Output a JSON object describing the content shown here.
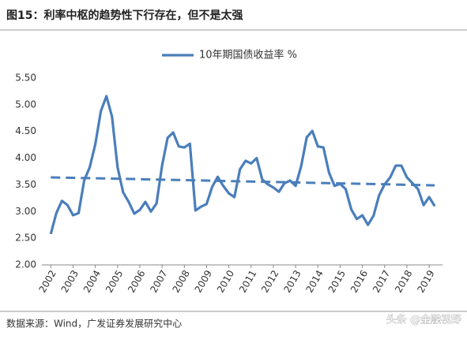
{
  "title": "图15：利率中枢的趋势性下行存在，但不是太强",
  "source": "数据来源：Wind，广发证券发展研究中心",
  "watermark": "头条 @金融视野",
  "chart_data": {
    "type": "line",
    "series": [
      {
        "name": "10年期国债收益率 %",
        "color": "#4a7ebb",
        "x": [
          2002,
          2002.25,
          2002.5,
          2002.75,
          2003,
          2003.25,
          2003.5,
          2003.75,
          2004,
          2004.25,
          2004.5,
          2004.75,
          2005,
          2005.25,
          2005.5,
          2005.75,
          2006,
          2006.25,
          2006.5,
          2006.75,
          2007,
          2007.25,
          2007.5,
          2007.75,
          2008,
          2008.25,
          2008.5,
          2008.75,
          2009,
          2009.25,
          2009.5,
          2009.75,
          2010,
          2010.25,
          2010.5,
          2010.75,
          2011,
          2011.25,
          2011.5,
          2011.75,
          2012,
          2012.25,
          2012.5,
          2012.75,
          2013,
          2013.25,
          2013.5,
          2013.75,
          2014,
          2014.25,
          2014.5,
          2014.75,
          2015,
          2015.25,
          2015.5,
          2015.75,
          2016,
          2016.25,
          2016.5,
          2016.75,
          2017,
          2017.25,
          2017.5,
          2017.75,
          2018,
          2018.25,
          2018.5,
          2018.75,
          2019,
          2019.25
        ],
        "values": [
          2.58,
          2.97,
          3.2,
          3.12,
          2.93,
          2.97,
          3.58,
          3.83,
          4.26,
          4.88,
          5.16,
          4.78,
          3.83,
          3.36,
          3.18,
          2.96,
          3.03,
          3.18,
          3.0,
          3.15,
          3.86,
          4.38,
          4.48,
          4.22,
          4.2,
          4.27,
          3.02,
          3.09,
          3.14,
          3.46,
          3.65,
          3.48,
          3.34,
          3.27,
          3.79,
          3.95,
          3.9,
          4.0,
          3.6,
          3.51,
          3.45,
          3.37,
          3.53,
          3.58,
          3.48,
          3.85,
          4.39,
          4.51,
          4.22,
          4.2,
          3.73,
          3.48,
          3.52,
          3.42,
          3.04,
          2.86,
          2.93,
          2.75,
          2.92,
          3.3,
          3.51,
          3.64,
          3.86,
          3.86,
          3.64,
          3.53,
          3.42,
          3.12,
          3.27,
          3.1
        ]
      }
    ],
    "trend": {
      "x": [
        2002,
        2019.25
      ],
      "values": [
        3.64,
        3.49
      ],
      "color": "#4a7ebb",
      "dashed": true
    },
    "xlim": [
      2001.6,
      2019.6
    ],
    "xticks": [
      2002,
      2003,
      2004,
      2005,
      2006,
      2007,
      2008,
      2009,
      2010,
      2011,
      2012,
      2013,
      2014,
      2015,
      2016,
      2017,
      2018,
      2019
    ],
    "ylim": [
      2,
      5.5
    ],
    "yticks": [
      {
        "value": 2,
        "label": "2.00"
      },
      {
        "value": 2.5,
        "label": "2.50"
      },
      {
        "value": 3,
        "label": "3.00"
      },
      {
        "value": 3.5,
        "label": "3.50"
      },
      {
        "value": 4,
        "label": "4.00"
      },
      {
        "value": 4.5,
        "label": "4.50"
      },
      {
        "value": 5,
        "label": "5.00"
      },
      {
        "value": 5.5,
        "label": "5.50"
      }
    ],
    "grid": false
  }
}
